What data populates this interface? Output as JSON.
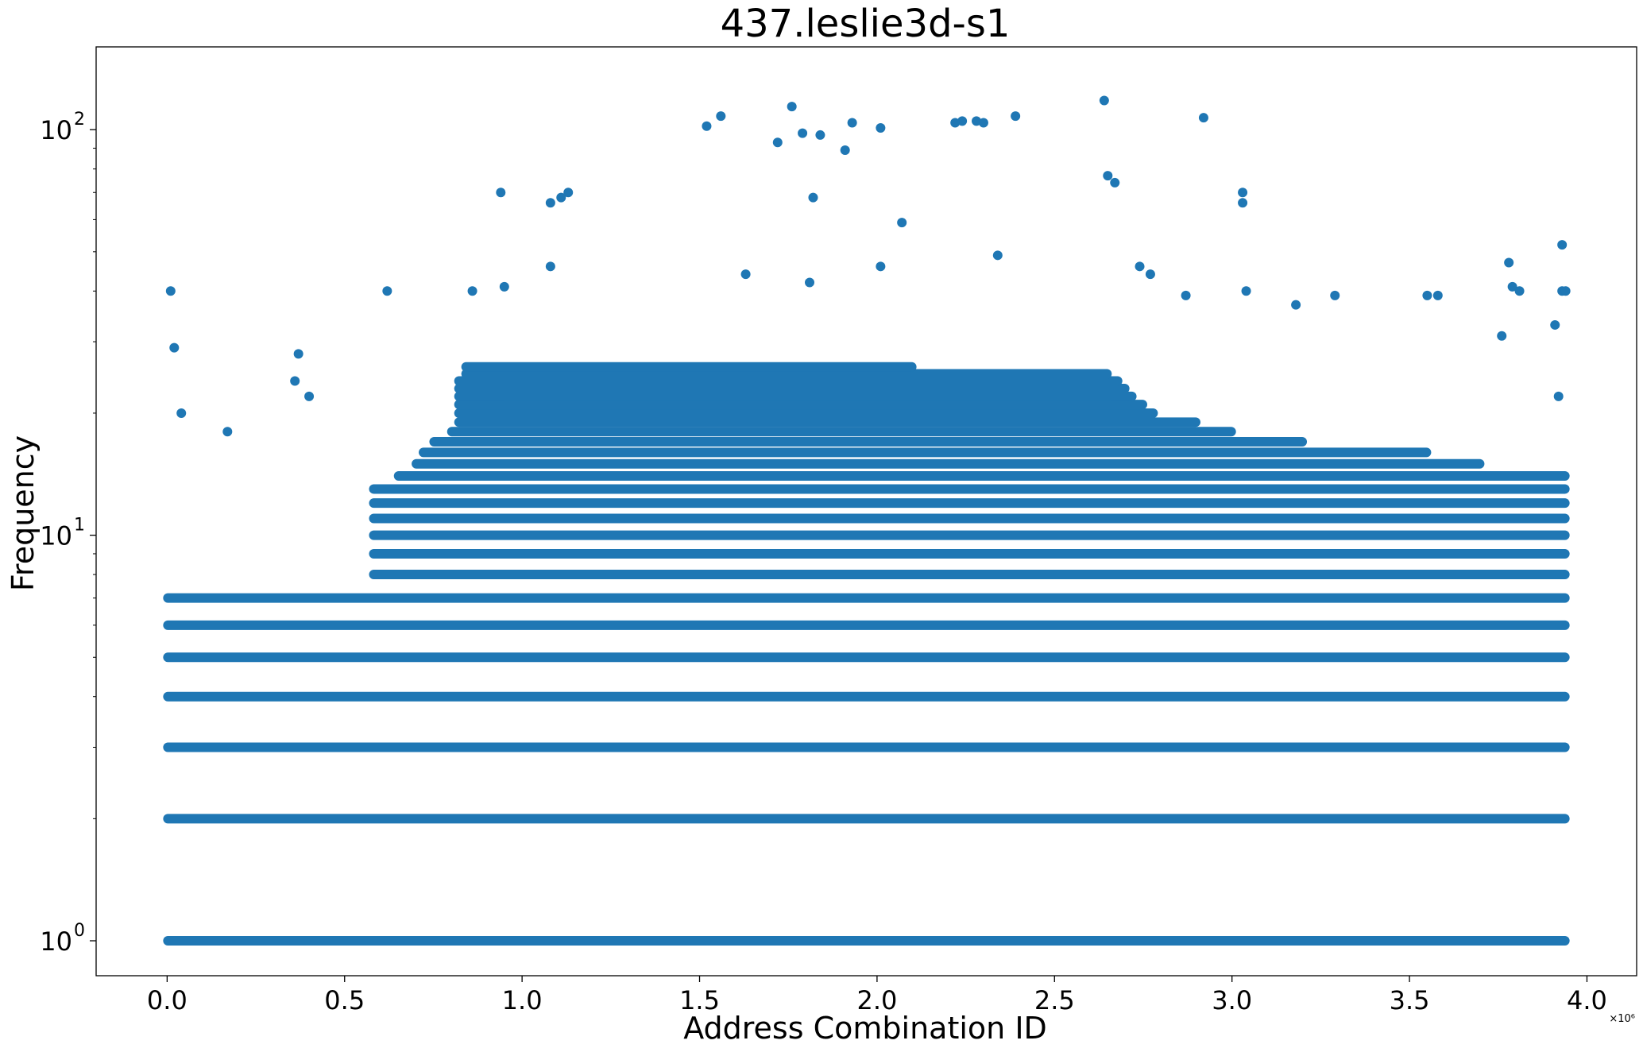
{
  "chart_data": {
    "type": "scatter",
    "title": "437.leslie3d-s1",
    "xlabel": "Address Combination ID",
    "ylabel": "Frequency",
    "x_offset_label": "×10⁶",
    "xlim": [
      -0.2,
      4.14
    ],
    "ylim": [
      0.82,
      160
    ],
    "yscale": "log",
    "grid": false,
    "marker_color": "#1f77b4",
    "x_ticks": [
      0.0,
      0.5,
      1.0,
      1.5,
      2.0,
      2.5,
      3.0,
      3.5,
      4.0
    ],
    "x_tick_labels": [
      "0.0",
      "0.5",
      "1.0",
      "1.5",
      "2.0",
      "2.5",
      "3.0",
      "3.5",
      "4.0"
    ],
    "y_ticks": [
      1,
      10,
      100
    ],
    "y_tick_labels": [
      "10",
      "10",
      "10"
    ],
    "y_tick_exponents": [
      "0",
      "1",
      "2"
    ],
    "x_unit_multiplier": 1000000,
    "bands": [
      {
        "y": 1,
        "x_start": 0.0,
        "x_end": 3.94
      },
      {
        "y": 2,
        "x_start": 0.0,
        "x_end": 3.94
      },
      {
        "y": 3,
        "x_start": 0.0,
        "x_end": 3.94
      },
      {
        "y": 4,
        "x_start": 0.0,
        "x_end": 3.94
      },
      {
        "y": 5,
        "x_start": 0.0,
        "x_end": 3.94
      },
      {
        "y": 6,
        "x_start": 0.0,
        "x_end": 3.94
      },
      {
        "y": 7,
        "x_start": 0.0,
        "x_end": 3.94
      },
      {
        "y": 8,
        "x_start": 0.58,
        "x_end": 3.94
      },
      {
        "y": 9,
        "x_start": 0.58,
        "x_end": 3.94
      },
      {
        "y": 10,
        "x_start": 0.58,
        "x_end": 3.94
      },
      {
        "y": 11,
        "x_start": 0.58,
        "x_end": 3.94
      },
      {
        "y": 12,
        "x_start": 0.58,
        "x_end": 3.94
      },
      {
        "y": 13,
        "x_start": 0.58,
        "x_end": 3.94
      },
      {
        "y": 14,
        "x_start": 0.65,
        "x_end": 3.94
      },
      {
        "y": 15,
        "x_start": 0.7,
        "x_end": 3.7
      },
      {
        "y": 16,
        "x_start": 0.72,
        "x_end": 3.55
      },
      {
        "y": 17,
        "x_start": 0.75,
        "x_end": 3.2
      },
      {
        "y": 18,
        "x_start": 0.8,
        "x_end": 3.0
      },
      {
        "y": 19,
        "x_start": 0.82,
        "x_end": 2.9
      },
      {
        "y": 20,
        "x_start": 0.82,
        "x_end": 2.78
      },
      {
        "y": 21,
        "x_start": 0.82,
        "x_end": 2.75
      },
      {
        "y": 22,
        "x_start": 0.82,
        "x_end": 2.72
      },
      {
        "y": 23,
        "x_start": 0.82,
        "x_end": 2.7
      },
      {
        "y": 24,
        "x_start": 0.82,
        "x_end": 2.68
      },
      {
        "y": 25,
        "x_start": 0.84,
        "x_end": 2.65
      },
      {
        "y": 26,
        "x_start": 0.84,
        "x_end": 2.1
      }
    ],
    "points": [
      {
        "x": 0.01,
        "y": 40
      },
      {
        "x": 0.02,
        "y": 29
      },
      {
        "x": 0.04,
        "y": 20
      },
      {
        "x": 0.62,
        "y": 40
      },
      {
        "x": 0.37,
        "y": 28
      },
      {
        "x": 0.36,
        "y": 24
      },
      {
        "x": 0.4,
        "y": 22
      },
      {
        "x": 0.17,
        "y": 18
      },
      {
        "x": 0.86,
        "y": 40
      },
      {
        "x": 0.95,
        "y": 41
      },
      {
        "x": 0.94,
        "y": 70
      },
      {
        "x": 1.08,
        "y": 46
      },
      {
        "x": 1.08,
        "y": 66
      },
      {
        "x": 1.11,
        "y": 68
      },
      {
        "x": 1.13,
        "y": 70
      },
      {
        "x": 1.52,
        "y": 102
      },
      {
        "x": 1.56,
        "y": 108
      },
      {
        "x": 1.72,
        "y": 93
      },
      {
        "x": 1.76,
        "y": 114
      },
      {
        "x": 1.79,
        "y": 98
      },
      {
        "x": 1.84,
        "y": 97
      },
      {
        "x": 1.91,
        "y": 89
      },
      {
        "x": 1.93,
        "y": 104
      },
      {
        "x": 2.01,
        "y": 101
      },
      {
        "x": 1.82,
        "y": 68
      },
      {
        "x": 2.07,
        "y": 59
      },
      {
        "x": 2.22,
        "y": 104
      },
      {
        "x": 2.24,
        "y": 105
      },
      {
        "x": 2.28,
        "y": 105
      },
      {
        "x": 2.3,
        "y": 104
      },
      {
        "x": 2.39,
        "y": 108
      },
      {
        "x": 2.34,
        "y": 49
      },
      {
        "x": 2.01,
        "y": 46
      },
      {
        "x": 1.63,
        "y": 44
      },
      {
        "x": 1.81,
        "y": 42
      },
      {
        "x": 2.64,
        "y": 118
      },
      {
        "x": 2.65,
        "y": 77
      },
      {
        "x": 2.67,
        "y": 74
      },
      {
        "x": 2.92,
        "y": 107
      },
      {
        "x": 3.03,
        "y": 70
      },
      {
        "x": 3.03,
        "y": 66
      },
      {
        "x": 2.74,
        "y": 46
      },
      {
        "x": 2.77,
        "y": 44
      },
      {
        "x": 3.78,
        "y": 47
      },
      {
        "x": 3.79,
        "y": 41
      },
      {
        "x": 3.81,
        "y": 40
      },
      {
        "x": 3.93,
        "y": 52
      },
      {
        "x": 3.93,
        "y": 40
      },
      {
        "x": 3.94,
        "y": 40
      },
      {
        "x": 3.92,
        "y": 22
      },
      {
        "x": 3.91,
        "y": 33
      },
      {
        "x": 3.04,
        "y": 40
      },
      {
        "x": 2.87,
        "y": 39
      },
      {
        "x": 3.18,
        "y": 37
      },
      {
        "x": 3.29,
        "y": 39
      },
      {
        "x": 3.55,
        "y": 39
      },
      {
        "x": 3.58,
        "y": 39
      },
      {
        "x": 3.76,
        "y": 31
      }
    ]
  }
}
